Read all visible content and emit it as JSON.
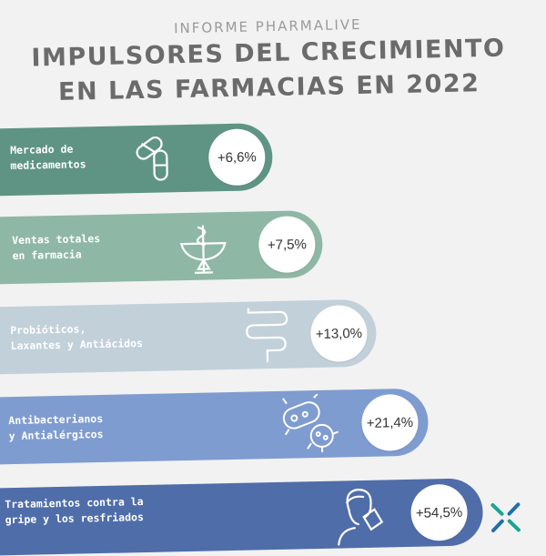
{
  "header": {
    "kicker": "INFORME PHARMALIVE",
    "title_line1": "IMPULSORES DEL CRECIMIENTO",
    "title_line2": "EN LAS FARMACIAS EN 2022"
  },
  "chart_data": {
    "type": "bar",
    "categories": [
      "Mercado de medicamentos",
      "Ventas totales en farmacia",
      "Probióticos, Laxantes y Antiácidos",
      "Antibacterianos y Antialérgicos",
      "Tratamientos contra la gripe y los resfriados"
    ],
    "values": [
      6.6,
      7.5,
      13.0,
      21.4,
      54.5
    ],
    "value_labels": [
      "+6,6%",
      "+7,5%",
      "+13,0%",
      "+21,4%",
      "+54,5%"
    ],
    "title": "IMPULSORES DEL CRECIMIENTO EN LAS FARMACIAS EN 2022",
    "orientation": "horizontal"
  },
  "bars": [
    {
      "line1": "Mercado de",
      "line2": "medicamentos",
      "value": "+6,6%",
      "color": "#5f9484",
      "icon": "pills-icon"
    },
    {
      "line1": "Ventas totales",
      "line2": "en farmacia",
      "value": "+7,5%",
      "color": "#8fb7a6",
      "icon": "pharmacy-snake-icon"
    },
    {
      "line1": "Probióticos,",
      "line2": "Laxantes y Antiácidos",
      "value": "+13,0%",
      "color": "#c2d0da",
      "icon": "intestine-icon"
    },
    {
      "line1": "Antibacterianos",
      "line2": "y Antialérgicos",
      "value": "+21,4%",
      "color": "#7f9cd0",
      "icon": "bacteria-icon"
    },
    {
      "line1": "Tratamientos contra la",
      "line2": "gripe y los resfriados",
      "value": "+54,5%",
      "color": "#4f6da9",
      "icon": "sick-person-icon"
    }
  ],
  "colors": {
    "background": "#f2f2f2",
    "title": "#6b6b6b",
    "kicker": "#9a9a9a"
  },
  "logo": {
    "icon": "pharmacy-cross-logo"
  }
}
